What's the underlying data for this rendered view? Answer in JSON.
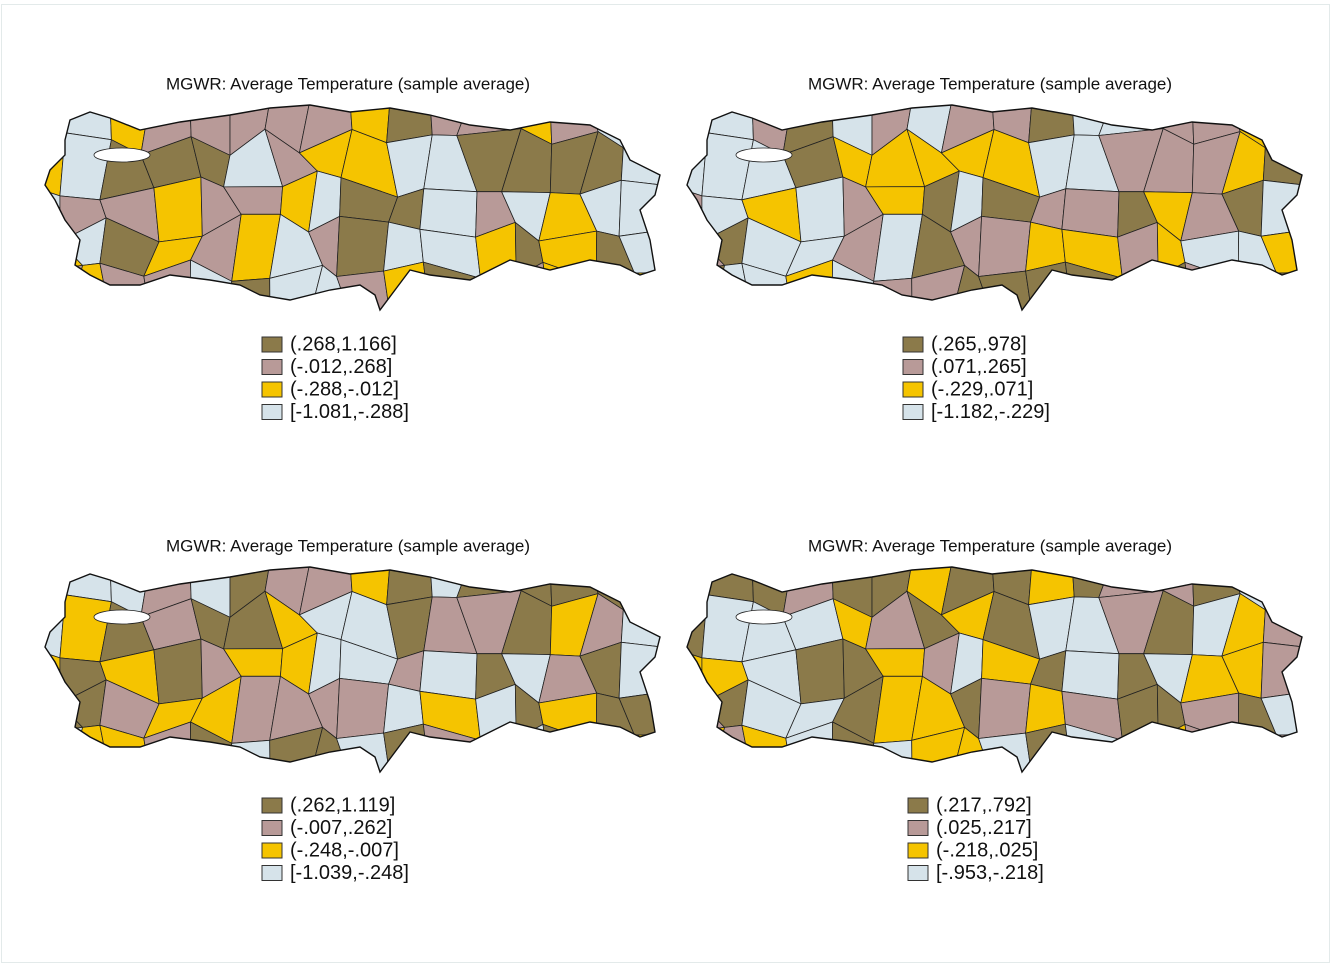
{
  "maps": [
    {
      "title": "MGWR: Average Temperature (sample average)",
      "legend": [
        {
          "label": "(.268,1.166]",
          "color": "#8b7a4a"
        },
        {
          "label": "(-.012,.268]",
          "color": "#b89a98"
        },
        {
          "label": "(-.288,-.012]",
          "color": "#f5c400"
        },
        {
          "label": "[-1.081,-.288]",
          "color": "#d6e3ea"
        }
      ]
    },
    {
      "title": "MGWR: Average Temperature (sample average)",
      "legend": [
        {
          "label": "(.265,.978]",
          "color": "#8b7a4a"
        },
        {
          "label": "(.071,.265]",
          "color": "#b89a98"
        },
        {
          "label": "(-.229,.071]",
          "color": "#f5c400"
        },
        {
          "label": "[-1.182,-.229]",
          "color": "#d6e3ea"
        }
      ]
    },
    {
      "title": "MGWR: Average Temperature (sample average)",
      "legend": [
        {
          "label": "(.262,1.119]",
          "color": "#8b7a4a"
        },
        {
          "label": "(-.007,.262]",
          "color": "#b89a98"
        },
        {
          "label": "(-.248,-.007]",
          "color": "#f5c400"
        },
        {
          "label": "[-1.039,-.248]",
          "color": "#d6e3ea"
        }
      ]
    },
    {
      "title": "MGWR: Average Temperature (sample average)",
      "legend": [
        {
          "label": "(.217,.792]",
          "color": "#8b7a4a"
        },
        {
          "label": "(.025,.217]",
          "color": "#b89a98"
        },
        {
          "label": "(-.218,.025]",
          "color": "#f5c400"
        },
        {
          "label": "[-.953,-.218]",
          "color": "#d6e3ea"
        }
      ]
    }
  ]
}
